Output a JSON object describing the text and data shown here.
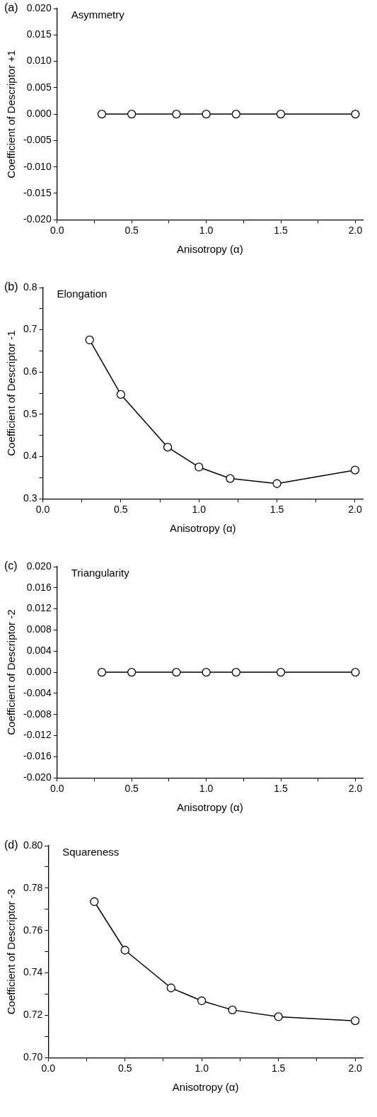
{
  "chart_data": [
    {
      "type": "line",
      "title": "(a)",
      "subtitle": "Asymmetry",
      "xlabel": "Anisotropy (α)",
      "ylabel": "Coefficient of Descriptor +1",
      "x": [
        0.3,
        0.5,
        0.8,
        1.0,
        1.2,
        1.5,
        2.0
      ],
      "series": [
        {
          "color": "#000000",
          "values": [
            0,
            0,
            0,
            0,
            0,
            0,
            0
          ]
        }
      ],
      "xlim": [
        0,
        2.05
      ],
      "xticks": [
        {
          "value": 0,
          "label": "0.0"
        },
        {
          "value": 0.25,
          "label": null
        },
        {
          "value": 0.5,
          "label": "0.5"
        },
        {
          "value": 0.75,
          "label": null
        },
        {
          "value": 1,
          "label": "1.0"
        },
        {
          "value": 1.25,
          "label": null
        },
        {
          "value": 1.5,
          "label": "1.5"
        },
        {
          "value": 1.75,
          "label": null
        },
        {
          "value": 2,
          "label": "2.0"
        }
      ],
      "ylim": [
        -0.02,
        0.02
      ],
      "yticks": [
        {
          "value": -0.02,
          "label": "-0.020"
        },
        {
          "value": -0.015,
          "label": "-0.015"
        },
        {
          "value": -0.01,
          "label": "-0.010"
        },
        {
          "value": -0.005,
          "label": "-0.005"
        },
        {
          "value": 0,
          "label": "0.000"
        },
        {
          "value": 0.005,
          "label": "0.005"
        },
        {
          "value": 0.01,
          "label": "0.010"
        },
        {
          "value": 0.015,
          "label": "0.015"
        },
        {
          "value": 0.02,
          "label": "0.020"
        }
      ],
      "grid": false,
      "legend": false,
      "marker": "circle",
      "line_style": "solid"
    },
    {
      "type": "line",
      "title": "(b)",
      "subtitle": "Elongation",
      "xlabel": "Anisotropy (α)",
      "ylabel": "Coefficient of Descriptor -1",
      "x": [
        0.3,
        0.5,
        0.8,
        1.0,
        1.2,
        1.5,
        2.0
      ],
      "series": [
        {
          "color": "#000000",
          "values": [
            0.676,
            0.547,
            0.422,
            0.375,
            0.348,
            0.336,
            0.368
          ]
        }
      ],
      "xlim": [
        0,
        2.05
      ],
      "xticks": [
        {
          "value": 0,
          "label": "0.0"
        },
        {
          "value": 0.25,
          "label": null
        },
        {
          "value": 0.5,
          "label": "0.5"
        },
        {
          "value": 0.75,
          "label": null
        },
        {
          "value": 1,
          "label": "1.0"
        },
        {
          "value": 1.25,
          "label": null
        },
        {
          "value": 1.5,
          "label": "1.5"
        },
        {
          "value": 1.75,
          "label": null
        },
        {
          "value": 2,
          "label": "2.0"
        }
      ],
      "ylim": [
        0.3,
        0.8
      ],
      "yticks": [
        0.3,
        {
          "value": 0.35,
          "label": null
        },
        0.4,
        {
          "value": 0.45,
          "label": null
        },
        0.5,
        {
          "value": 0.55,
          "label": null
        },
        0.6,
        {
          "value": 0.65,
          "label": null
        },
        0.7,
        {
          "value": 0.75,
          "label": null
        },
        0.8
      ],
      "grid": false,
      "legend": false,
      "marker": "circle",
      "line_style": "solid"
    },
    {
      "type": "line",
      "title": "(c)",
      "subtitle": "Triangularity",
      "xlabel": "Anisotropy (α)",
      "ylabel": "Coefficient of Descriptor -2",
      "x": [
        0.3,
        0.5,
        0.8,
        1.0,
        1.2,
        1.5,
        2.0
      ],
      "series": [
        {
          "color": "#000000",
          "values": [
            0,
            0,
            0,
            0,
            0,
            0,
            0
          ]
        }
      ],
      "xlim": [
        0,
        2.05
      ],
      "xticks": [
        {
          "value": 0,
          "label": "0.0"
        },
        {
          "value": 0.25,
          "label": null
        },
        {
          "value": 0.5,
          "label": "0.5"
        },
        {
          "value": 0.75,
          "label": null
        },
        {
          "value": 1,
          "label": "1.0"
        },
        {
          "value": 1.25,
          "label": null
        },
        {
          "value": 1.5,
          "label": "1.5"
        },
        {
          "value": 1.75,
          "label": null
        },
        {
          "value": 2,
          "label": "2.0"
        }
      ],
      "ylim": [
        -0.02,
        0.02
      ],
      "yticks": [
        {
          "value": -0.02,
          "label": "-0.020"
        },
        {
          "value": -0.016,
          "label": "-0.016"
        },
        {
          "value": -0.012,
          "label": "-0.012"
        },
        {
          "value": -0.008,
          "label": "-0.008"
        },
        {
          "value": -0.004,
          "label": "-0.004"
        },
        {
          "value": 0,
          "label": "0.000"
        },
        {
          "value": 0.004,
          "label": "0.004"
        },
        {
          "value": 0.008,
          "label": "0.008"
        },
        {
          "value": 0.012,
          "label": "0.012"
        },
        {
          "value": 0.016,
          "label": "0.016"
        },
        {
          "value": 0.02,
          "label": "0.020"
        }
      ],
      "grid": false,
      "legend": false,
      "marker": "circle",
      "line_style": "solid"
    },
    {
      "type": "line",
      "title": "(d)",
      "subtitle": "Squareness",
      "xlabel": "Anisotropy (α)",
      "ylabel": "Coefficient of Descriptor -3",
      "x": [
        0.3,
        0.5,
        0.8,
        1.0,
        1.2,
        1.5,
        2.0
      ],
      "series": [
        {
          "color": "#000000",
          "values": [
            0.7736,
            0.7507,
            0.7329,
            0.7268,
            0.7225,
            0.7193,
            0.7174
          ]
        }
      ],
      "xlim": [
        0,
        2.05
      ],
      "xticks": [
        {
          "value": 0,
          "label": "0.0"
        },
        {
          "value": 0.25,
          "label": null
        },
        {
          "value": 0.5,
          "label": "0.5"
        },
        {
          "value": 0.75,
          "label": null
        },
        {
          "value": 1,
          "label": "1.0"
        },
        {
          "value": 1.25,
          "label": null
        },
        {
          "value": 1.5,
          "label": "1.5"
        },
        {
          "value": 1.75,
          "label": null
        },
        {
          "value": 2,
          "label": "2.0"
        }
      ],
      "ylim": [
        0.7,
        0.8
      ],
      "yticks": [
        {
          "value": 0.7,
          "label": "0.70"
        },
        {
          "value": 0.71,
          "label": null
        },
        {
          "value": 0.72,
          "label": "0.72"
        },
        {
          "value": 0.73,
          "label": null
        },
        {
          "value": 0.74,
          "label": "0.74"
        },
        {
          "value": 0.75,
          "label": null
        },
        {
          "value": 0.76,
          "label": "0.76"
        },
        {
          "value": 0.77,
          "label": null
        },
        {
          "value": 0.78,
          "label": "0.78"
        },
        {
          "value": 0.79,
          "label": null
        },
        {
          "value": 0.8,
          "label": "0.80"
        }
      ],
      "grid": false,
      "legend": false,
      "marker": "circle",
      "line_style": "solid"
    }
  ]
}
